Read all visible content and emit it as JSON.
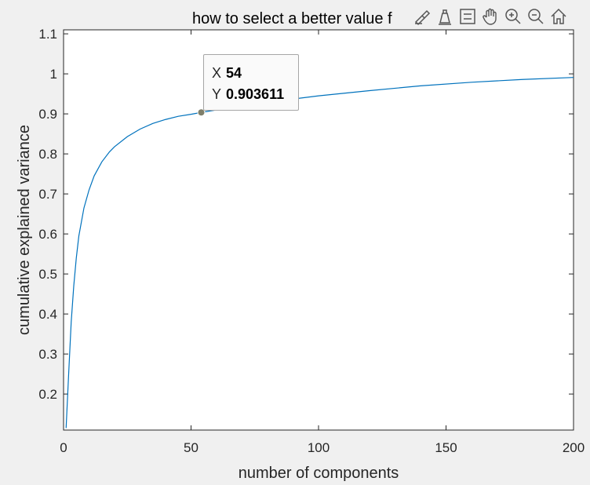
{
  "figure": {
    "title": "how to select a better value f",
    "toolbar": [
      {
        "icon": "brush-data-icon",
        "tip": ""
      },
      {
        "icon": "data-tip-icon",
        "tip": ""
      },
      {
        "icon": "legend-icon",
        "tip": ""
      },
      {
        "icon": "pan-hand-icon",
        "tip": ""
      },
      {
        "icon": "zoom-in-icon",
        "tip": ""
      },
      {
        "icon": "zoom-out-icon",
        "tip": ""
      },
      {
        "icon": "home-icon",
        "tip": ""
      }
    ]
  },
  "datatip": {
    "x_label": "X",
    "x_value": "54",
    "y_label": "Y",
    "y_value": "0.903611"
  },
  "chart_data": {
    "type": "line",
    "title": "how to select a better value f",
    "xlabel": "number of components",
    "ylabel": "cumulative explained variance",
    "xlim": [
      0,
      200
    ],
    "ylim": [
      0.11,
      1.11
    ],
    "xticks": [
      0,
      50,
      100,
      150,
      200
    ],
    "xtick_labels": [
      "0",
      "50",
      "100",
      "150",
      "200"
    ],
    "yticks": [
      0.2,
      0.3,
      0.4,
      0.5,
      0.6,
      0.7,
      0.8,
      0.9,
      1.0,
      1.1
    ],
    "ytick_labels": [
      "0.2",
      "0.3",
      "0.4",
      "0.5",
      "0.6",
      "0.7",
      "0.8",
      "0.9",
      "1",
      "1.1"
    ],
    "grid": false,
    "line_color": "#0072bd",
    "series": [
      {
        "x": [
          1,
          2,
          3,
          4,
          5,
          6,
          8,
          10,
          12,
          15,
          18,
          20,
          25,
          30,
          35,
          40,
          45,
          50,
          54,
          60,
          70,
          80,
          90,
          100,
          120,
          140,
          160,
          180,
          200
        ],
        "y": [
          0.115,
          0.25,
          0.38,
          0.47,
          0.54,
          0.595,
          0.665,
          0.71,
          0.745,
          0.78,
          0.805,
          0.818,
          0.843,
          0.862,
          0.876,
          0.886,
          0.894,
          0.899,
          0.903611,
          0.91,
          0.92,
          0.929,
          0.937,
          0.945,
          0.958,
          0.97,
          0.979,
          0.986,
          0.991
        ]
      }
    ],
    "datatip_point": {
      "x": 54,
      "y": 0.903611
    }
  }
}
